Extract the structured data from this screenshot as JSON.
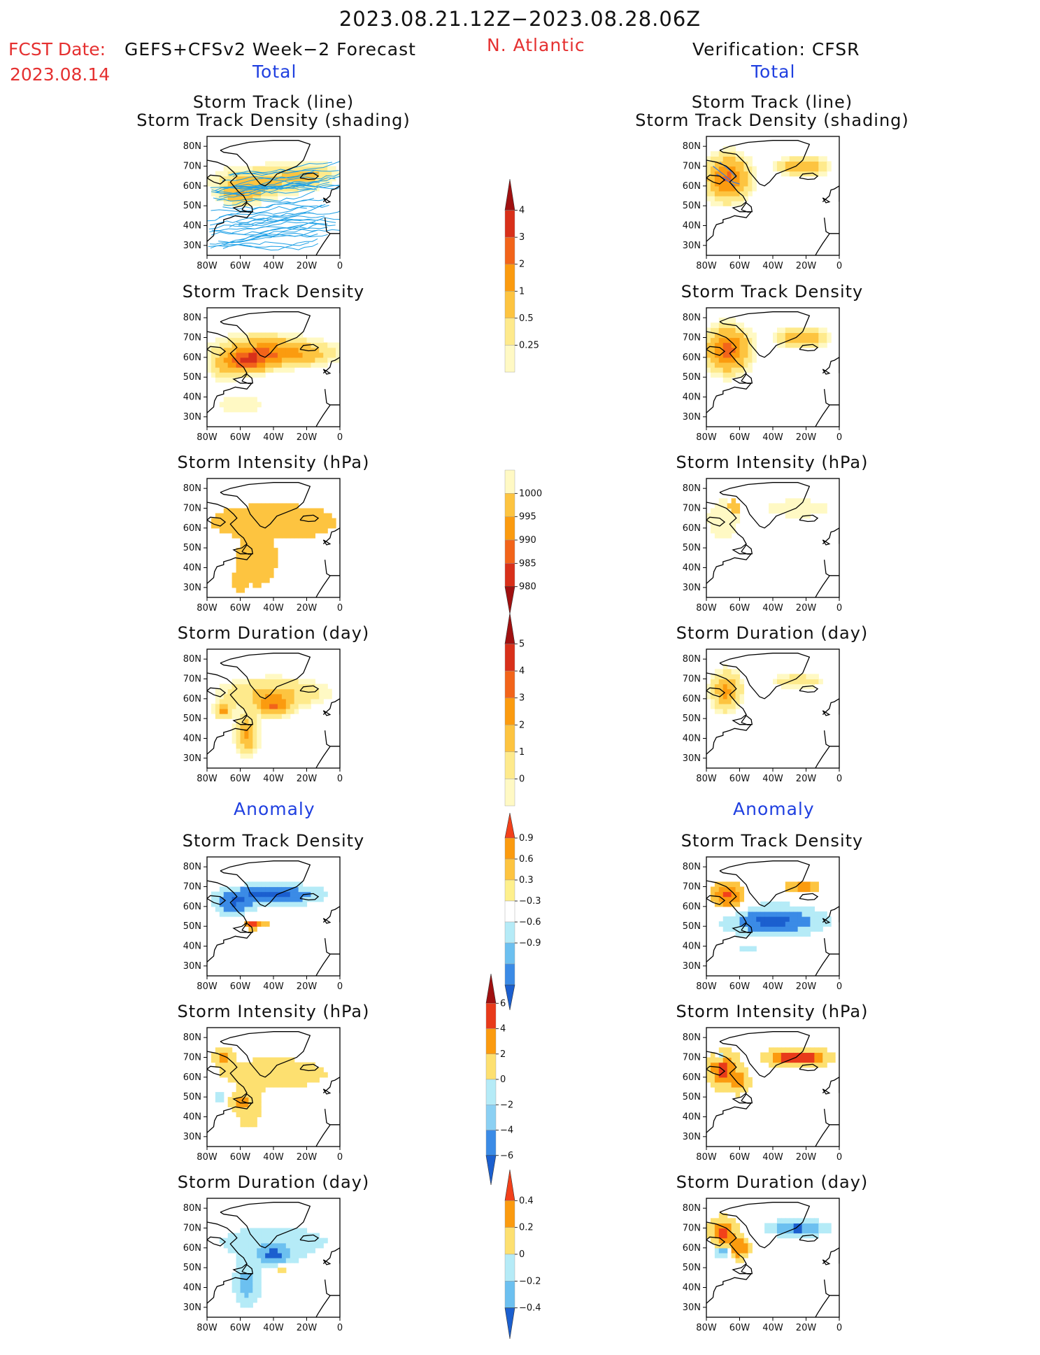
{
  "header": {
    "date_range": "2023.08.21.12Z−2023.08.28.06Z",
    "fcst_label": "FCST Date:",
    "fcst_date": "2023.08.14",
    "model": "GEFS+CFSv2 Week−2 Forecast",
    "region": "N. Atlantic",
    "verification": "Verification: CFSR"
  },
  "sections": {
    "total": "Total",
    "anomaly": "Anomaly"
  },
  "axes": {
    "lat_ticks": [
      "80N",
      "70N",
      "60N",
      "50N",
      "40N",
      "30N"
    ],
    "lon_ticks": [
      "80W",
      "60W",
      "40W",
      "20W",
      "0"
    ]
  },
  "colors": {
    "text": "#111111",
    "header_red": "#e53030",
    "section_blue": "#1f3fe0",
    "track_line": "#1ea0e6",
    "coast": "#000000"
  },
  "chart_data": [
    {
      "id": "fc-track",
      "type": "heatmap",
      "panel": "forecast",
      "title": "Storm Track (line)",
      "subtitle": "Storm Track Density (shading)",
      "xlim": [
        -80,
        0
      ],
      "ylim": [
        25,
        85
      ],
      "blobs": [
        {
          "lon": -50,
          "lat": 62,
          "rx": 30,
          "ry": 9,
          "v": 1.2
        },
        {
          "lon": -20,
          "lat": 66,
          "rx": 20,
          "ry": 7,
          "v": 1.1
        },
        {
          "lon": -60,
          "lat": 56,
          "rx": 12,
          "ry": 6,
          "v": 1.6
        }
      ],
      "tracks": true
    },
    {
      "id": "fc-density",
      "type": "heatmap",
      "panel": "forecast",
      "title": "Storm Track Density",
      "xlim": [
        -80,
        0
      ],
      "ylim": [
        25,
        85
      ],
      "blobs": [
        {
          "lon": -38,
          "lat": 62,
          "rx": 35,
          "ry": 7,
          "v": 2.6
        },
        {
          "lon": -56,
          "lat": 58,
          "rx": 15,
          "ry": 6,
          "v": 3.3
        },
        {
          "lon": -48,
          "lat": 67,
          "rx": 28,
          "ry": 8,
          "v": 0.7
        },
        {
          "lon": -60,
          "lat": 36,
          "rx": 28,
          "ry": 10,
          "v": 0.35
        },
        {
          "lon": -70,
          "lat": 54,
          "rx": 10,
          "ry": 7,
          "v": 0.9
        }
      ]
    },
    {
      "id": "fc-intensity",
      "type": "heatmap",
      "panel": "forecast",
      "title": "Storm Intensity (hPa)",
      "xlim": [
        -80,
        0
      ],
      "ylim": [
        25,
        85
      ],
      "blobs": [
        {
          "lon": -40,
          "lat": 63,
          "rx": 38,
          "ry": 9,
          "v": 992
        },
        {
          "lon": -50,
          "lat": 45,
          "rx": 12,
          "ry": 14,
          "v": 992
        },
        {
          "lon": -60,
          "lat": 34,
          "rx": 6,
          "ry": 6,
          "v": 992
        }
      ]
    },
    {
      "id": "fc-duration",
      "type": "heatmap",
      "panel": "forecast",
      "title": "Storm Duration (day)",
      "xlim": [
        -80,
        0
      ],
      "ylim": [
        25,
        85
      ],
      "blobs": [
        {
          "lon": -40,
          "lat": 63,
          "rx": 38,
          "ry": 9,
          "v": 2.4
        },
        {
          "lon": -40,
          "lat": 56,
          "rx": 12,
          "ry": 6,
          "v": 3.2
        },
        {
          "lon": -56,
          "lat": 42,
          "rx": 8,
          "ry": 12,
          "v": 3.3
        },
        {
          "lon": -70,
          "lat": 54,
          "rx": 6,
          "ry": 5,
          "v": 3.2
        }
      ]
    },
    {
      "id": "fc-anom-density",
      "type": "heatmap",
      "panel": "forecast",
      "title": "Storm Track Density",
      "xlim": [
        -80,
        0
      ],
      "ylim": [
        25,
        85
      ],
      "blobs": [
        {
          "lon": -40,
          "lat": 66,
          "rx": 38,
          "ry": 7,
          "v": -1.0
        },
        {
          "lon": -65,
          "lat": 60,
          "rx": 14,
          "ry": 8,
          "v": -0.7
        },
        {
          "lon": -50,
          "lat": 51,
          "rx": 10,
          "ry": 3,
          "v": 0.6
        },
        {
          "lon": -53,
          "lat": 51,
          "rx": 4,
          "ry": 2,
          "v": 1.0
        }
      ]
    },
    {
      "id": "fc-anom-intensity",
      "type": "heatmap",
      "panel": "forecast",
      "title": "Storm Intensity (hPa)",
      "xlim": [
        -80,
        0
      ],
      "ylim": [
        25,
        85
      ],
      "blobs": [
        {
          "lon": -40,
          "lat": 62,
          "rx": 38,
          "ry": 9,
          "v": 1.2
        },
        {
          "lon": -55,
          "lat": 44,
          "rx": 10,
          "ry": 12,
          "v": 1.0
        },
        {
          "lon": -70,
          "lat": 70,
          "rx": 6,
          "ry": 4,
          "v": 3.0
        },
        {
          "lon": -60,
          "lat": 48,
          "rx": 6,
          "ry": 4,
          "v": 3.0
        },
        {
          "lon": -72,
          "lat": 50,
          "rx": 5,
          "ry": 4,
          "v": -1.0
        }
      ]
    },
    {
      "id": "fc-anom-duration",
      "type": "heatmap",
      "panel": "forecast",
      "title": "Storm Duration (day)",
      "xlim": [
        -80,
        0
      ],
      "ylim": [
        25,
        85
      ],
      "blobs": [
        {
          "lon": -40,
          "lat": 63,
          "rx": 38,
          "ry": 9,
          "v": -0.15
        },
        {
          "lon": -40,
          "lat": 56,
          "rx": 12,
          "ry": 6,
          "v": -0.45
        },
        {
          "lon": -56,
          "lat": 42,
          "rx": 8,
          "ry": 12,
          "v": -0.3
        },
        {
          "lon": -35,
          "lat": 50,
          "rx": 5,
          "ry": 2,
          "v": 0.3
        }
      ]
    },
    {
      "id": "ob-track",
      "type": "heatmap",
      "panel": "verification",
      "title": "Storm Track (line)",
      "subtitle": "Storm Track Density (shading)",
      "xlim": [
        -80,
        0
      ],
      "ylim": [
        25,
        85
      ],
      "blobs": [
        {
          "lon": -67,
          "lat": 64,
          "rx": 14,
          "ry": 12,
          "v": 3.2
        },
        {
          "lon": -22,
          "lat": 70,
          "rx": 16,
          "ry": 5,
          "v": 2.0
        }
      ],
      "tracks_obs": true
    },
    {
      "id": "ob-density",
      "type": "heatmap",
      "panel": "verification",
      "title": "Storm Track Density",
      "xlim": [
        -80,
        0
      ],
      "ylim": [
        25,
        85
      ],
      "blobs": [
        {
          "lon": -67,
          "lat": 64,
          "rx": 14,
          "ry": 12,
          "v": 3.4
        },
        {
          "lon": -22,
          "lat": 70,
          "rx": 16,
          "ry": 5,
          "v": 2.2
        }
      ]
    },
    {
      "id": "ob-intensity",
      "type": "heatmap",
      "panel": "verification",
      "title": "Storm Intensity (hPa)",
      "xlim": [
        -80,
        0
      ],
      "ylim": [
        25,
        85
      ],
      "blobs": [
        {
          "lon": -70,
          "lat": 64,
          "rx": 9,
          "ry": 10,
          "v": 998
        },
        {
          "lon": -25,
          "lat": 70,
          "rx": 18,
          "ry": 4,
          "v": 998
        },
        {
          "lon": -64,
          "lat": 71,
          "rx": 5,
          "ry": 3,
          "v": 994
        }
      ]
    },
    {
      "id": "ob-duration",
      "type": "heatmap",
      "panel": "verification",
      "title": "Storm Duration (day)",
      "xlim": [
        -80,
        0
      ],
      "ylim": [
        25,
        85
      ],
      "blobs": [
        {
          "lon": -68,
          "lat": 64,
          "rx": 11,
          "ry": 12,
          "v": 3.3
        },
        {
          "lon": -25,
          "lat": 69,
          "rx": 18,
          "ry": 4,
          "v": 2.0
        }
      ]
    },
    {
      "id": "ob-anom-density",
      "type": "heatmap",
      "panel": "verification",
      "title": "Storm Track Density",
      "xlim": [
        -80,
        0
      ],
      "ylim": [
        25,
        85
      ],
      "blobs": [
        {
          "lon": -40,
          "lat": 53,
          "rx": 40,
          "ry": 10,
          "v": -1.0
        },
        {
          "lon": -67,
          "lat": 65,
          "rx": 13,
          "ry": 10,
          "v": 1.0
        },
        {
          "lon": -22,
          "lat": 70,
          "rx": 14,
          "ry": 4,
          "v": 0.8
        },
        {
          "lon": -55,
          "lat": 38,
          "rx": 20,
          "ry": 5,
          "v": -0.3
        }
      ]
    },
    {
      "id": "ob-anom-intensity",
      "type": "heatmap",
      "panel": "verification",
      "title": "Storm Intensity (hPa)",
      "xlim": [
        -80,
        0
      ],
      "ylim": [
        25,
        85
      ],
      "blobs": [
        {
          "lon": -25,
          "lat": 70,
          "rx": 18,
          "ry": 4,
          "v": 7
        },
        {
          "lon": -70,
          "lat": 64,
          "rx": 9,
          "ry": 9,
          "v": 5
        },
        {
          "lon": -60,
          "lat": 58,
          "rx": 6,
          "ry": 6,
          "v": 3
        },
        {
          "lon": -72,
          "lat": 70,
          "rx": 4,
          "ry": 3,
          "v": -3
        }
      ]
    },
    {
      "id": "ob-anom-duration",
      "type": "heatmap",
      "panel": "verification",
      "title": "Storm Duration (day)",
      "xlim": [
        -80,
        0
      ],
      "ylim": [
        25,
        85
      ],
      "blobs": [
        {
          "lon": -25,
          "lat": 70,
          "rx": 18,
          "ry": 4,
          "v": -0.5
        },
        {
          "lon": -70,
          "lat": 68,
          "rx": 8,
          "ry": 7,
          "v": 0.5
        },
        {
          "lon": -60,
          "lat": 60,
          "rx": 6,
          "ry": 6,
          "v": 0.4
        },
        {
          "lon": -70,
          "lat": 58,
          "rx": 4,
          "ry": 3,
          "v": -0.4
        }
      ]
    }
  ],
  "colorbars": [
    {
      "id": "cb-density",
      "labels": [
        "4",
        "3",
        "2",
        "1",
        "0.5",
        "0.25"
      ],
      "colors": [
        "#a01010",
        "#d8301a",
        "#f2641a",
        "#fb9b0f",
        "#fdc440",
        "#feea8c",
        "#fff9c4"
      ]
    },
    {
      "id": "cb-intensity",
      "labels": [
        "1000",
        "995",
        "990",
        "985",
        "980"
      ],
      "colors": [
        "#fff9c4",
        "#fdc440",
        "#fb9b0f",
        "#f2641a",
        "#d8301a",
        "#a01010"
      ]
    },
    {
      "id": "cb-duration",
      "labels": [
        "5",
        "4",
        "3",
        "2",
        "1",
        "0"
      ],
      "colors": [
        "#a01010",
        "#d8301a",
        "#f2641a",
        "#fb9b0f",
        "#fdc440",
        "#feea8c",
        "#fff9c4"
      ]
    },
    {
      "id": "cb-anom-density",
      "labels": [
        "0.9",
        "0.6",
        "0.3",
        "−0.3",
        "−0.6",
        "−0.9"
      ],
      "colors": [
        "#f2401a",
        "#fb9b0f",
        "#fdc440",
        "#fef08c",
        "#ffffff",
        "#b5ebf7",
        "#6cc0f0",
        "#3b8be6",
        "#1b5fcf"
      ]
    },
    {
      "id": "cb-anom-intensity",
      "labels": [
        "6",
        "4",
        "2",
        "0",
        "−2",
        "−4",
        "−6"
      ],
      "colors": [
        "#a01010",
        "#e83a1a",
        "#fb9b0f",
        "#fde070",
        "#b5ebf7",
        "#8bd0f3",
        "#3b8be6",
        "#1b5fcf"
      ]
    },
    {
      "id": "cb-anom-duration",
      "labels": [
        "0.4",
        "0.2",
        "0",
        "−0.2",
        "−0.4"
      ],
      "colors": [
        "#f2401a",
        "#fb9b0f",
        "#fde070",
        "#b5ebf7",
        "#6cc0f0",
        "#1b5fcf"
      ]
    }
  ]
}
